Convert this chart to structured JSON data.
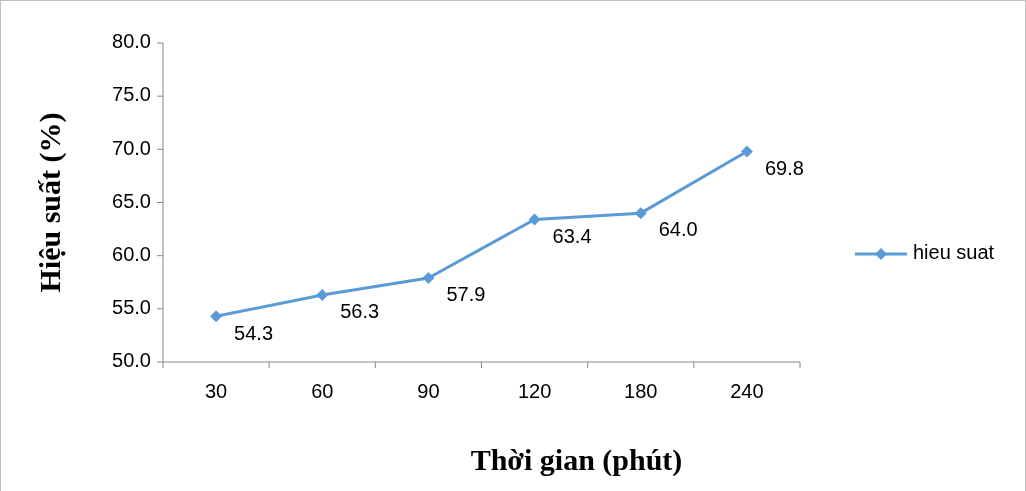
{
  "chart_data": {
    "type": "line",
    "xlabel": "Thời gian (phút)",
    "ylabel": "Hiệu suất (%)",
    "categories": [
      "30",
      "60",
      "90",
      "120",
      "180",
      "240"
    ],
    "series": [
      {
        "name": "hieu suat",
        "color": "#5b9bd5",
        "values": [
          54.3,
          56.3,
          57.9,
          63.4,
          64.0,
          69.8
        ]
      }
    ],
    "value_labels": [
      "54.3",
      "56.3",
      "57.9",
      "63.4",
      "64.0",
      "69.8"
    ],
    "ylim": [
      50,
      80
    ],
    "yticks": [
      {
        "value": 50,
        "label": "50.0"
      },
      {
        "value": 55,
        "label": "55.0"
      },
      {
        "value": 60,
        "label": "60.0"
      },
      {
        "value": 65,
        "label": "65.0"
      },
      {
        "value": 70,
        "label": "70.0"
      },
      {
        "value": 75,
        "label": "75.0"
      },
      {
        "value": 80,
        "label": "80.0"
      }
    ],
    "grid": false,
    "legend": "right",
    "marker": "diamond",
    "line_style": "solid"
  }
}
